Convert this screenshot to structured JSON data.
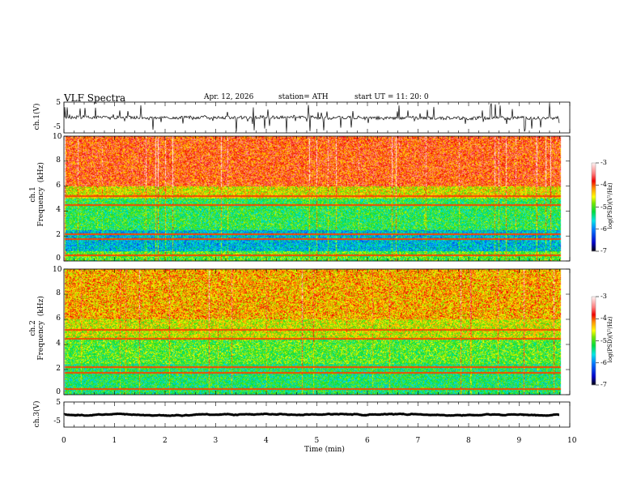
{
  "header": {
    "title": "VLF  Spectra",
    "date": "Apr. 12, 2026",
    "station": "station= ATH",
    "start_ut": "start  UT  =    11: 20: 0"
  },
  "chart_data": [
    {
      "type": "line",
      "name": "ch1-waveform",
      "ylabel": "ch.1(V)",
      "ylim": [
        -5,
        5
      ],
      "yticks": [
        "5",
        "-5"
      ],
      "xlim": [
        0,
        10
      ],
      "data_end_min": 9.8
    },
    {
      "type": "heatmap",
      "name": "ch1-spectrogram",
      "ylabel": "ch.1\nFrequency  (kHz)",
      "ylim": [
        0,
        10
      ],
      "yticks": [
        "0",
        "2",
        "4",
        "6",
        "8",
        "10"
      ],
      "colorbar": {
        "label": "log(PSD)(V²/Hz)",
        "range": [
          -7,
          -3
        ],
        "ticks": [
          "-3",
          "-4",
          "-5",
          "-6",
          "-7"
        ]
      }
    },
    {
      "type": "heatmap",
      "name": "ch2-spectrogram",
      "ylabel": "ch.2\nFrequency  (kHz)",
      "ylim": [
        0,
        10
      ],
      "yticks": [
        "0",
        "2",
        "4",
        "6",
        "8",
        "10"
      ],
      "colorbar": {
        "label": "log(PSD)(V²/Hz)",
        "range": [
          -7,
          -3
        ],
        "ticks": [
          "-3",
          "-4",
          "-5",
          "-6",
          "-7"
        ]
      }
    },
    {
      "type": "line",
      "name": "ch3-waveform",
      "ylabel": "ch.3(V)",
      "ylim": [
        -5,
        5
      ],
      "yticks": [
        "5",
        "-5"
      ]
    }
  ],
  "xaxis": {
    "label": "Time  (min)",
    "range": [
      0,
      10
    ],
    "ticks": [
      "0",
      "1",
      "2",
      "3",
      "4",
      "5",
      "6",
      "7",
      "8",
      "9",
      "10"
    ]
  }
}
